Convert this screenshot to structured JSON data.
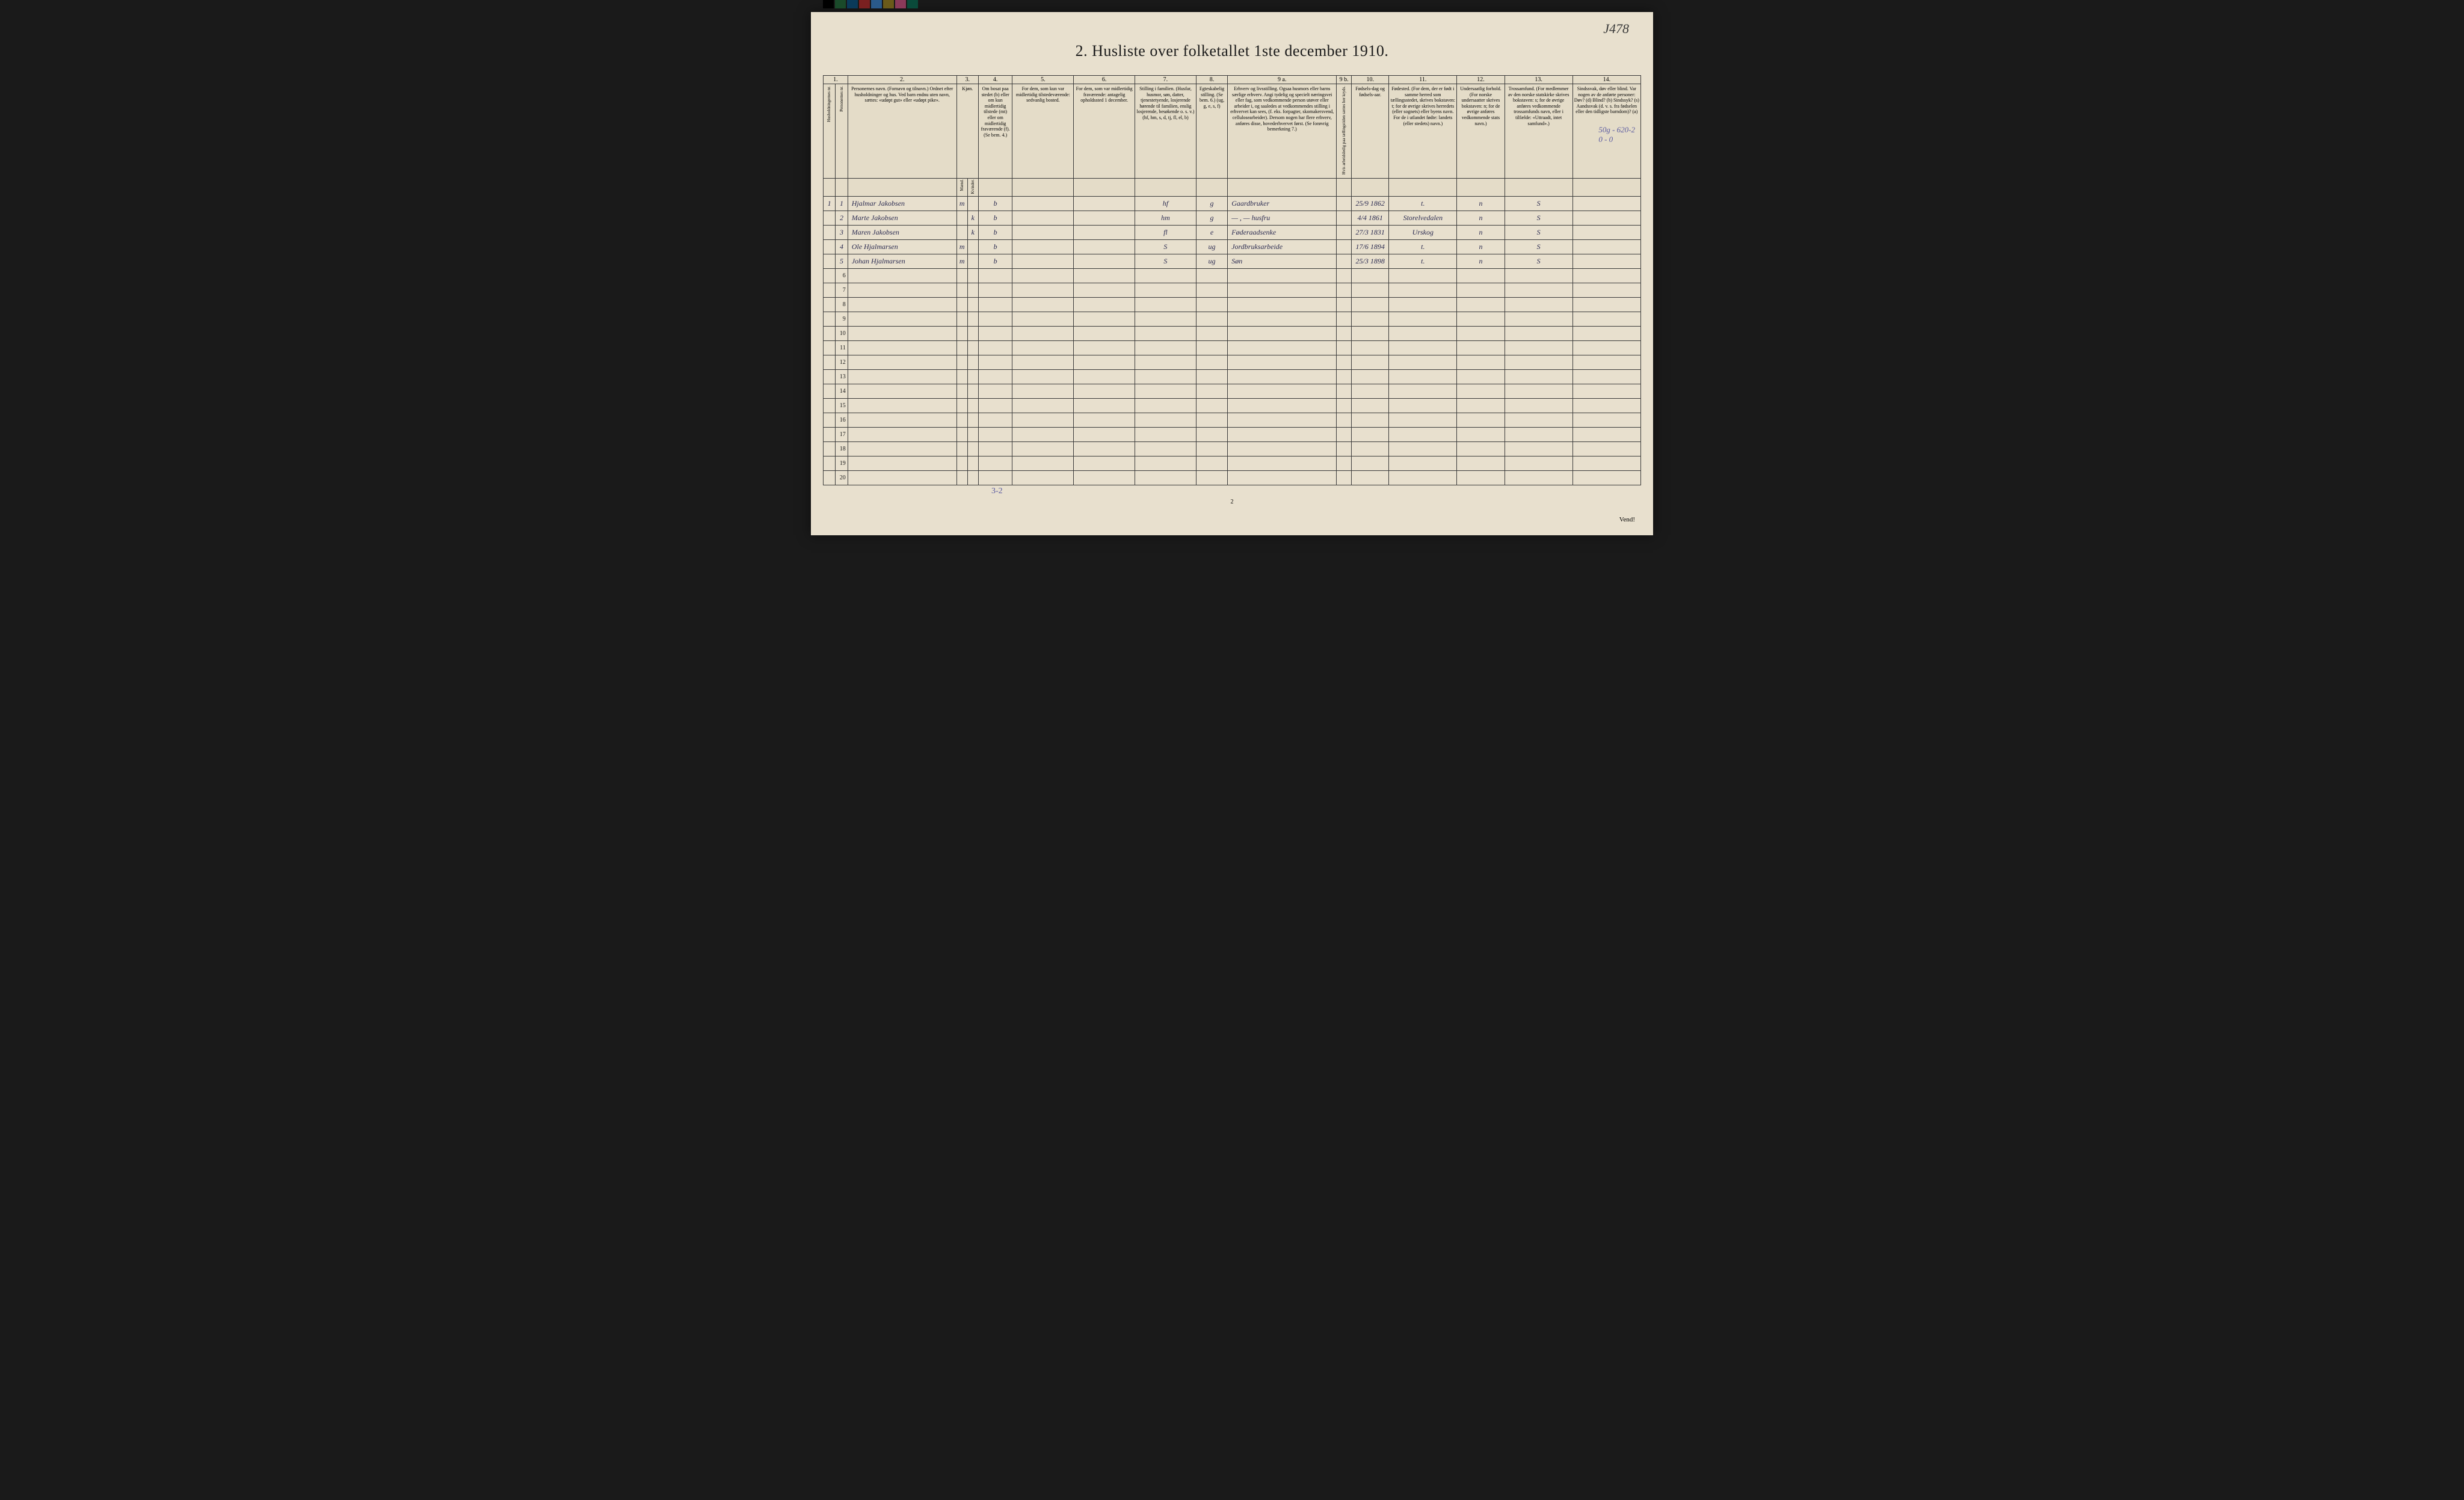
{
  "title": "2.  Husliste over folketallet 1ste december 1910.",
  "corner_annotation": "J478",
  "side_annotation": "50g - 620-2",
  "side_annotation2": "0 - 0",
  "bottom_annotation": "3-2",
  "page_number": "2",
  "vend_text": "Vend!",
  "color_bar": [
    "#000000",
    "#1a4a2a",
    "#0a3a5a",
    "#7a2020",
    "#2a5a8a",
    "#6a5a1a",
    "#8a3a5a",
    "#0a4a3a"
  ],
  "column_numbers": [
    "1.",
    "2.",
    "3.",
    "4.",
    "5.",
    "6.",
    "7.",
    "8.",
    "9 a.",
    "9 b.",
    "10.",
    "11.",
    "12.",
    "13.",
    "14."
  ],
  "headers": {
    "col1a": "Husholdningernes nr.",
    "col1b": "Personernes nr.",
    "col2": "Personernes navn.\n(Fornavn og tilnavn.)\nOrdnet efter husholdninger og hus.\nVed barn endnu uten navn, sættes: «udøpt gut» eller «udøpt pike».",
    "col3": "Kjøn.",
    "col3a": "Mænd.",
    "col3b": "Kvinder.",
    "col4": "Om bosat paa stedet (b) eller om kun midlertidig tilstede (mt) eller om midlertidig fraværende (f). (Se bem. 4.)",
    "col5": "For dem, som kun var midlertidig tilstedeværende:\nsedvanlig bosted.",
    "col6": "For dem, som var midlertidig fraværende:\nantagelig opholdssted 1 december.",
    "col7": "Stilling i familien.\n(Husfar, husmor, søn, datter, tjenestetyende, losjerende hørende til familien, enslig losjerende, besøkende o. s. v.)\n(hf, hm, s, d, tj, fl, el, b)",
    "col8": "Egteskabelig stilling.\n(Se bem. 6.)\n(ug, g, e, s, f)",
    "col9a": "Erhverv og livsstilling.\nOgsaa husmors eller barns særlige erhverv. Angi tydelig og specielt næringsvei eller fag, som vedkommende person utøver eller arbeider i, og saaledes at vedkommendes stilling i erhvervet kan sees, (f. eks. forpagter, skomakersvend, cellulosearbeider). Dersom nogen har flere erhverv, anføres disse, hovederhvervet først. (Se forøvrig bemerkning 7.)",
    "col9b": "Hvis arbeidsledig paa tællingstiden sættes her kryds.",
    "col10": "Fødsels-dag og fødsels-aar.",
    "col11": "Fødested.\n(For dem, der er født i samme herred som tællingsstedet, skrives bokstaven: t; for de øvrige skrives herredets (eller sognets) eller byens navn. For de i utlandet fødte: landets (eller stedets) navn.)",
    "col12": "Undersaatlig forhold.\n(For norske undersaatter skrives bokstaven: n; for de øvrige anføres vedkommende stats navn.)",
    "col13": "Trossamfund.\n(For medlemmer av den norske statskirke skrives bokstaven: s; for de øvrige anføres vedkommende trossamfunds navn, eller i tilfælde: «Uttraadt, intet samfund».)",
    "col14": "Sindssvak, døv eller blind.\nVar nogen av de anførte personer:\nDøv? (d)\nBlind? (b)\nSindssyk? (s)\nAandssvak (d. v. s. fra fødselen eller den tidligste barndom)? (a)"
  },
  "rows": [
    {
      "hh": "1",
      "pn": "1",
      "name": "Hjalmar Jakobsen",
      "sex_m": "m",
      "sex_k": "",
      "res": "b",
      "col5": "",
      "col6": "",
      "fam": "hf",
      "mar": "g",
      "occ": "Gaardbruker",
      "col9b": "",
      "birth": "25/9 1862",
      "place": "t.",
      "nat": "n",
      "rel": "S",
      "col14": ""
    },
    {
      "hh": "",
      "pn": "2",
      "name": "Marte Jakobsen",
      "sex_m": "",
      "sex_k": "k",
      "res": "b",
      "col5": "",
      "col6": "",
      "fam": "hm",
      "mar": "g",
      "occ": "— , — husfru",
      "col9b": "",
      "birth": "4/4 1861",
      "place": "Storelvedalen",
      "nat": "n",
      "rel": "S",
      "col14": ""
    },
    {
      "hh": "",
      "pn": "3",
      "name": "Maren Jakobsen",
      "sex_m": "",
      "sex_k": "k",
      "res": "b",
      "col5": "",
      "col6": "",
      "fam": "fl",
      "mar": "e",
      "occ": "Føderaadsenke",
      "col9b": "",
      "birth": "27/3 1831",
      "place": "Urskog",
      "nat": "n",
      "rel": "S",
      "col14": ""
    },
    {
      "hh": "",
      "pn": "4",
      "name": "Ole Hjalmarsen",
      "sex_m": "m",
      "sex_k": "",
      "res": "b",
      "col5": "",
      "col6": "",
      "fam": "S",
      "mar": "ug",
      "occ": "Jordbruksarbeide",
      "col9b": "",
      "birth": "17/6 1894",
      "place": "t.",
      "nat": "n",
      "rel": "S",
      "col14": ""
    },
    {
      "hh": "",
      "pn": "5",
      "name": "Johan Hjalmarsen",
      "sex_m": "m",
      "sex_k": "",
      "res": "b",
      "col5": "",
      "col6": "",
      "fam": "S",
      "mar": "ug",
      "occ": "Søn",
      "col9b": "",
      "birth": "25/3 1898",
      "place": "t.",
      "nat": "n",
      "rel": "S",
      "col14": ""
    }
  ],
  "empty_row_count": 15,
  "col_widths": {
    "c1a": "18px",
    "c1b": "18px",
    "c2": "160px",
    "c3a": "16px",
    "c3b": "16px",
    "c4": "50px",
    "c5": "90px",
    "c6": "90px",
    "c7": "90px",
    "c8": "45px",
    "c9a": "160px",
    "c9b": "22px",
    "c10": "55px",
    "c11": "100px",
    "c12": "70px",
    "c13": "100px",
    "c14": "100px"
  },
  "colors": {
    "paper": "#e8e0ce",
    "ink": "#1a1a1a",
    "handwriting": "#2a2a50",
    "pencil": "#5a5aa0",
    "border": "#3a3a3a"
  }
}
